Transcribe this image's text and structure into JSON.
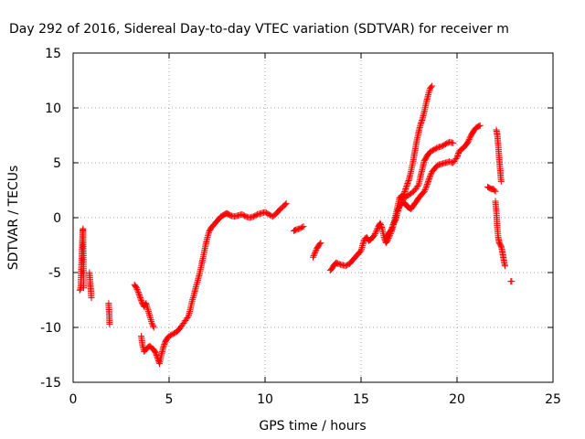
{
  "chart_data": {
    "type": "scatter",
    "title": "Day 292 of 2016, Sidereal Day-to-day VTEC variation (SDTVAR) for receiver m",
    "xlabel": "GPS time / hours",
    "ylabel": "SDTVAR / TECUs",
    "xlim": [
      0,
      25
    ],
    "ylim": [
      -15,
      15
    ],
    "x_ticks": [
      "0",
      "5",
      "10",
      "15",
      "20",
      "25"
    ],
    "y_ticks": [
      "-15",
      "-10",
      "-5",
      "0",
      "5",
      "10",
      "15"
    ],
    "grid": true,
    "marker": "+",
    "color": "#ff0000",
    "series": [
      {
        "segments": [
          [
            [
              0.35,
              -6.6
            ],
            [
              0.38,
              -6.5
            ],
            [
              0.4,
              -6.2
            ],
            [
              0.42,
              -5.0
            ],
            [
              0.44,
              -4.0
            ],
            [
              0.46,
              -3.0
            ],
            [
              0.48,
              -2.0
            ],
            [
              0.5,
              -1.2
            ],
            [
              0.52,
              -1.0
            ],
            [
              0.55,
              -6.4
            ]
          ],
          [
            [
              0.85,
              -5.0
            ],
            [
              0.88,
              -5.6
            ],
            [
              0.9,
              -6.2
            ],
            [
              0.93,
              -6.7
            ],
            [
              0.95,
              -7.3
            ]
          ],
          [
            [
              1.85,
              -7.8
            ],
            [
              1.88,
              -8.8
            ],
            [
              1.9,
              -9.7
            ]
          ],
          [
            [
              3.2,
              -6.1
            ],
            [
              3.3,
              -6.4
            ],
            [
              3.4,
              -6.8
            ],
            [
              3.5,
              -7.3
            ],
            [
              3.6,
              -7.8
            ],
            [
              3.7,
              -8.1
            ],
            [
              3.8,
              -7.8
            ],
            [
              3.9,
              -8.4
            ],
            [
              4.0,
              -9.0
            ],
            [
              4.1,
              -9.6
            ],
            [
              4.2,
              -10.0
            ]
          ],
          [
            [
              3.55,
              -10.8
            ],
            [
              3.6,
              -11.5
            ],
            [
              3.7,
              -12.2
            ],
            [
              3.8,
              -12.0
            ],
            [
              3.9,
              -11.8
            ],
            [
              4.0,
              -11.7
            ],
            [
              4.1,
              -11.9
            ],
            [
              4.2,
              -12.0
            ],
            [
              4.3,
              -12.3
            ],
            [
              4.4,
              -12.8
            ],
            [
              4.5,
              -13.3
            ],
            [
              4.6,
              -12.5
            ],
            [
              4.7,
              -11.8
            ],
            [
              4.8,
              -11.3
            ],
            [
              4.9,
              -11.0
            ],
            [
              5.0,
              -10.8
            ],
            [
              5.2,
              -10.6
            ],
            [
              5.4,
              -10.4
            ],
            [
              5.6,
              -10.0
            ],
            [
              5.8,
              -9.5
            ],
            [
              6.0,
              -9.0
            ],
            [
              6.1,
              -8.4
            ],
            [
              6.2,
              -7.6
            ],
            [
              6.3,
              -7.0
            ],
            [
              6.4,
              -6.3
            ],
            [
              6.5,
              -5.7
            ],
            [
              6.6,
              -5.0
            ],
            [
              6.7,
              -4.2
            ],
            [
              6.8,
              -3.4
            ],
            [
              6.9,
              -2.5
            ],
            [
              7.0,
              -1.8
            ],
            [
              7.1,
              -1.2
            ],
            [
              7.2,
              -0.9
            ],
            [
              7.3,
              -0.7
            ],
            [
              7.4,
              -0.5
            ],
            [
              7.5,
              -0.3
            ],
            [
              7.6,
              -0.1
            ],
            [
              7.7,
              0.1
            ],
            [
              7.8,
              0.2
            ],
            [
              7.9,
              0.3
            ],
            [
              8.0,
              0.4
            ],
            [
              8.1,
              0.3
            ],
            [
              8.2,
              0.2
            ],
            [
              8.4,
              0.1
            ],
            [
              8.6,
              0.2
            ],
            [
              8.8,
              0.3
            ],
            [
              9.0,
              0.1
            ],
            [
              9.2,
              0.0
            ],
            [
              9.4,
              0.1
            ],
            [
              9.6,
              0.3
            ],
            [
              9.8,
              0.4
            ],
            [
              10.0,
              0.5
            ],
            [
              10.2,
              0.3
            ],
            [
              10.4,
              0.1
            ],
            [
              10.6,
              0.4
            ],
            [
              10.8,
              0.8
            ],
            [
              11.0,
              1.1
            ],
            [
              11.1,
              1.3
            ]
          ],
          [
            [
              11.5,
              -1.2
            ],
            [
              11.6,
              -1.1
            ],
            [
              11.8,
              -1.0
            ],
            [
              12.0,
              -0.8
            ]
          ],
          [
            [
              12.5,
              -3.6
            ],
            [
              12.6,
              -3.2
            ],
            [
              12.7,
              -2.8
            ],
            [
              12.8,
              -2.5
            ],
            [
              12.9,
              -2.3
            ]
          ],
          [
            [
              13.4,
              -4.8
            ],
            [
              13.5,
              -4.6
            ],
            [
              13.6,
              -4.3
            ],
            [
              13.7,
              -4.1
            ],
            [
              13.8,
              -4.2
            ],
            [
              14.0,
              -4.3
            ],
            [
              14.2,
              -4.4
            ],
            [
              14.4,
              -4.2
            ],
            [
              14.6,
              -3.8
            ],
            [
              14.8,
              -3.4
            ],
            [
              15.0,
              -3.0
            ],
            [
              15.1,
              -2.4
            ],
            [
              15.2,
              -1.9
            ],
            [
              15.3,
              -1.8
            ],
            [
              15.4,
              -2.1
            ],
            [
              15.5,
              -2.0
            ],
            [
              15.6,
              -1.8
            ],
            [
              15.7,
              -1.6
            ],
            [
              15.8,
              -1.2
            ],
            [
              15.9,
              -0.8
            ],
            [
              16.0,
              -0.5
            ],
            [
              16.1,
              -1.0
            ],
            [
              16.2,
              -1.8
            ],
            [
              16.3,
              -2.3
            ],
            [
              16.4,
              -2.0
            ],
            [
              16.5,
              -1.6
            ],
            [
              16.6,
              -1.2
            ],
            [
              16.7,
              -0.6
            ],
            [
              16.8,
              0.2
            ],
            [
              16.9,
              1.0
            ],
            [
              17.0,
              1.8
            ],
            [
              17.1,
              2.0
            ],
            [
              17.2,
              1.9
            ],
            [
              17.3,
              1.8
            ],
            [
              17.4,
              2.0
            ],
            [
              17.6,
              2.2
            ],
            [
              17.8,
              2.5
            ],
            [
              18.0,
              3.0
            ],
            [
              18.1,
              3.8
            ],
            [
              18.2,
              4.5
            ],
            [
              18.3,
              5.2
            ],
            [
              18.4,
              5.5
            ],
            [
              18.5,
              5.8
            ],
            [
              18.6,
              6.0
            ],
            [
              18.8,
              6.2
            ],
            [
              19.0,
              6.4
            ],
            [
              19.2,
              6.5
            ],
            [
              19.4,
              6.7
            ],
            [
              19.6,
              6.9
            ],
            [
              19.8,
              6.8
            ]
          ],
          [
            [
              17.0,
              1.0
            ],
            [
              17.1,
              1.2
            ],
            [
              17.2,
              1.4
            ],
            [
              17.3,
              1.3
            ],
            [
              17.4,
              1.0
            ],
            [
              17.5,
              0.9
            ],
            [
              17.6,
              0.8
            ],
            [
              17.7,
              1.0
            ],
            [
              17.8,
              1.3
            ],
            [
              17.9,
              1.5
            ],
            [
              18.0,
              1.8
            ],
            [
              18.1,
              2.0
            ],
            [
              18.2,
              2.2
            ],
            [
              18.3,
              2.4
            ],
            [
              18.4,
              2.8
            ],
            [
              18.5,
              3.3
            ],
            [
              18.6,
              3.8
            ],
            [
              18.7,
              4.2
            ],
            [
              18.8,
              4.4
            ],
            [
              18.9,
              4.6
            ],
            [
              19.0,
              4.8
            ],
            [
              19.2,
              4.9
            ],
            [
              19.4,
              5.0
            ],
            [
              19.6,
              5.1
            ],
            [
              19.8,
              5.0
            ],
            [
              20.0,
              5.5
            ],
            [
              20.1,
              6.0
            ],
            [
              20.2,
              6.2
            ],
            [
              20.3,
              6.3
            ],
            [
              20.4,
              6.5
            ],
            [
              20.5,
              6.7
            ],
            [
              20.6,
              7.0
            ],
            [
              20.7,
              7.4
            ],
            [
              20.8,
              7.7
            ],
            [
              20.9,
              8.0
            ],
            [
              21.0,
              8.2
            ],
            [
              21.1,
              8.3
            ],
            [
              21.2,
              8.4
            ]
          ],
          [
            [
              16.3,
              -1.8
            ],
            [
              16.4,
              -1.5
            ],
            [
              16.5,
              -1.3
            ],
            [
              16.6,
              -1.0
            ],
            [
              16.7,
              -0.5
            ],
            [
              16.8,
              -0.2
            ],
            [
              16.9,
              0.5
            ],
            [
              17.0,
              1.0
            ],
            [
              17.1,
              1.5
            ],
            [
              17.2,
              2.0
            ],
            [
              17.3,
              2.5
            ],
            [
              17.4,
              3.0
            ],
            [
              17.5,
              3.5
            ],
            [
              17.6,
              4.2
            ],
            [
              17.7,
              5.0
            ],
            [
              17.8,
              6.0
            ],
            [
              17.9,
              7.0
            ],
            [
              18.0,
              7.8
            ],
            [
              18.1,
              8.5
            ],
            [
              18.2,
              9.0
            ],
            [
              18.3,
              9.7
            ],
            [
              18.4,
              10.5
            ],
            [
              18.5,
              11.2
            ],
            [
              18.6,
              11.8
            ],
            [
              18.7,
              12.0
            ]
          ],
          [
            [
              21.6,
              2.8
            ],
            [
              21.7,
              2.7
            ],
            [
              21.8,
              2.6
            ],
            [
              21.9,
              2.6
            ],
            [
              22.0,
              2.4
            ]
          ],
          [
            [
              22.0,
              1.5
            ],
            [
              22.05,
              0.5
            ],
            [
              22.1,
              -1.0
            ],
            [
              22.15,
              -1.8
            ],
            [
              22.2,
              -2.3
            ],
            [
              22.3,
              -2.6
            ],
            [
              22.35,
              -3.0
            ],
            [
              22.4,
              -3.5
            ],
            [
              22.45,
              -4.0
            ],
            [
              22.5,
              -4.4
            ]
          ],
          [
            [
              22.05,
              8.0
            ],
            [
              22.1,
              7.5
            ],
            [
              22.15,
              6.5
            ],
            [
              22.2,
              5.3
            ],
            [
              22.25,
              4.3
            ],
            [
              22.3,
              3.3
            ]
          ],
          [
            [
              22.8,
              -5.8
            ],
            [
              22.85,
              -5.8
            ]
          ]
        ]
      }
    ]
  }
}
